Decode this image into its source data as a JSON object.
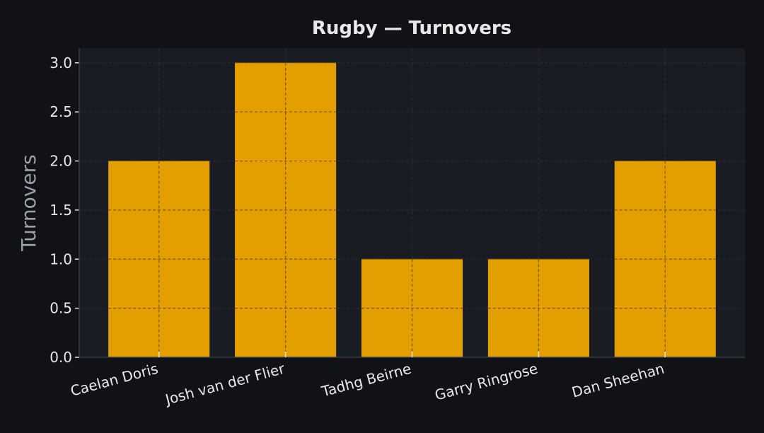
{
  "chart_data": {
    "type": "bar",
    "title": "Rugby — Turnovers",
    "xlabel": "",
    "ylabel": "Turnovers",
    "categories": [
      "Caelan Doris",
      "Josh van der Flier",
      "Tadhg Beirne",
      "Garry Ringrose",
      "Dan Sheehan"
    ],
    "values": [
      2,
      3,
      1,
      1,
      2
    ],
    "ylim": [
      0,
      3.15
    ],
    "yticks": [
      0.0,
      0.5,
      1.0,
      1.5,
      2.0,
      2.5,
      3.0
    ],
    "ytick_labels": [
      "0.0",
      "0.5",
      "1.0",
      "1.5",
      "2.0",
      "2.5",
      "3.0"
    ],
    "grid": true,
    "colors": {
      "background": "#111215",
      "plot_background": "#1a1c23",
      "bar": "#e39e00",
      "grid": "#2c2f38",
      "text": "#e8e8ea",
      "axis_label": "#9aa0aa"
    }
  }
}
